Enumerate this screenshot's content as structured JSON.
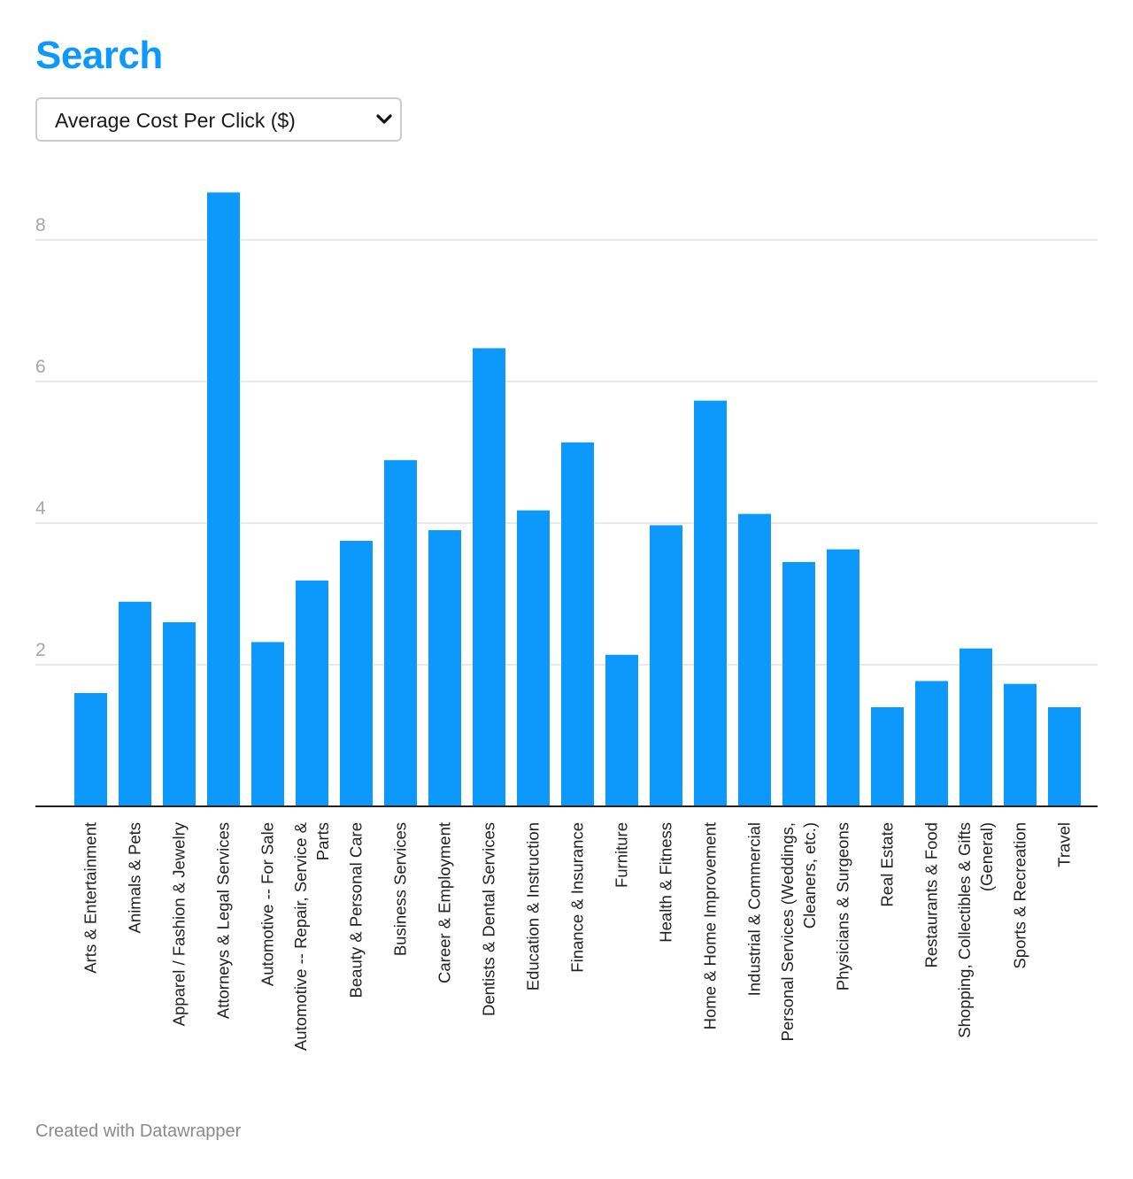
{
  "header": {
    "title": "Search"
  },
  "metric_select": {
    "selected": "Average Cost Per Click ($)"
  },
  "colors": {
    "accent": "#0d99fc",
    "bar": "#0d99fc",
    "grid": "#e2e2e2",
    "axis": "#222222"
  },
  "icons": {
    "select_caret": "chevron-down-icon"
  },
  "footer": {
    "credit": "Created with Datawrapper"
  },
  "chart_data": {
    "type": "bar",
    "title": "",
    "xlabel": "",
    "ylabel": "",
    "ylim": [
      0,
      8.6
    ],
    "yticks": [
      2,
      4,
      6,
      8
    ],
    "grid": true,
    "categories": [
      "Arts & Entertainment",
      "Animals & Pets",
      "Apparel / Fashion & Jewelry",
      "Attorneys & Legal Services",
      "Automotive -- For Sale",
      "Automotive -- Repair, Service & Parts",
      "Beauty & Personal Care",
      "Business Services",
      "Career & Employment",
      "Dentists & Dental Services",
      "Education & Instruction",
      "Finance & Insurance",
      "Furniture",
      "Health & Fitness",
      "Home & Home Improvement",
      "Industrial & Commercial",
      "Personal Services (Weddings, Cleaners, etc.)",
      "Physicians & Surgeons",
      "Real Estate",
      "Restaurants & Food",
      "Shopping, Collectibles & Gifts (General)",
      "Sports & Recreation",
      "Travel"
    ],
    "category_lines": [
      [
        "Arts & Entertainment"
      ],
      [
        "Animals & Pets"
      ],
      [
        "Apparel / Fashion & Jewelry"
      ],
      [
        "Attorneys & Legal Services"
      ],
      [
        "Automotive -- For Sale"
      ],
      [
        "Automotive -- Repair, Service &",
        "Parts"
      ],
      [
        "Beauty & Personal Care"
      ],
      [
        "Business Services"
      ],
      [
        "Career & Employment"
      ],
      [
        "Dentists & Dental Services"
      ],
      [
        "Education & Instruction"
      ],
      [
        "Finance & Insurance"
      ],
      [
        "Furniture"
      ],
      [
        "Health & Fitness"
      ],
      [
        "Home & Home Improvement"
      ],
      [
        "Industrial & Commercial"
      ],
      [
        "Personal Services (Weddings,",
        "Cleaners, etc.)"
      ],
      [
        "Physicians & Surgeons"
      ],
      [
        "Real Estate"
      ],
      [
        "Restaurants & Food"
      ],
      [
        "Shopping, Collectibles & Gifts",
        "(General)"
      ],
      [
        "Sports & Recreation"
      ],
      [
        "Travel"
      ]
    ],
    "values": [
      1.6,
      2.89,
      2.6,
      8.67,
      2.32,
      3.19,
      3.75,
      4.89,
      3.9,
      6.47,
      4.18,
      5.14,
      2.14,
      3.97,
      5.73,
      4.13,
      3.45,
      3.63,
      1.4,
      1.77,
      2.23,
      1.73,
      1.4
    ]
  }
}
